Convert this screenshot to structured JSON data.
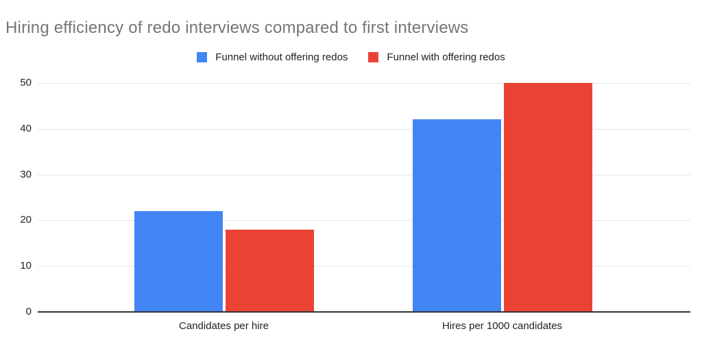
{
  "chart_data": {
    "type": "bar",
    "title": "Hiring efficiency of redo interviews compared to first interviews",
    "categories": [
      "Candidates per hire",
      "Hires per 1000 candidates"
    ],
    "series": [
      {
        "name": "Funnel without offering redos",
        "color": "#4285F4",
        "values": [
          22,
          42
        ]
      },
      {
        "name": "Funnel with offering redos",
        "color": "#EA4335",
        "values": [
          18,
          50
        ]
      }
    ],
    "xlabel": "",
    "ylabel": "",
    "ylim": [
      0,
      50
    ],
    "yticks": [
      0,
      10,
      20,
      30,
      40,
      50
    ],
    "grid": true,
    "legend_position": "top",
    "colors": {
      "title_text": "#757575",
      "axis_text": "#222222",
      "gridline": "#e6e6e6",
      "axis_line": "#333333",
      "background": "#ffffff"
    }
  }
}
